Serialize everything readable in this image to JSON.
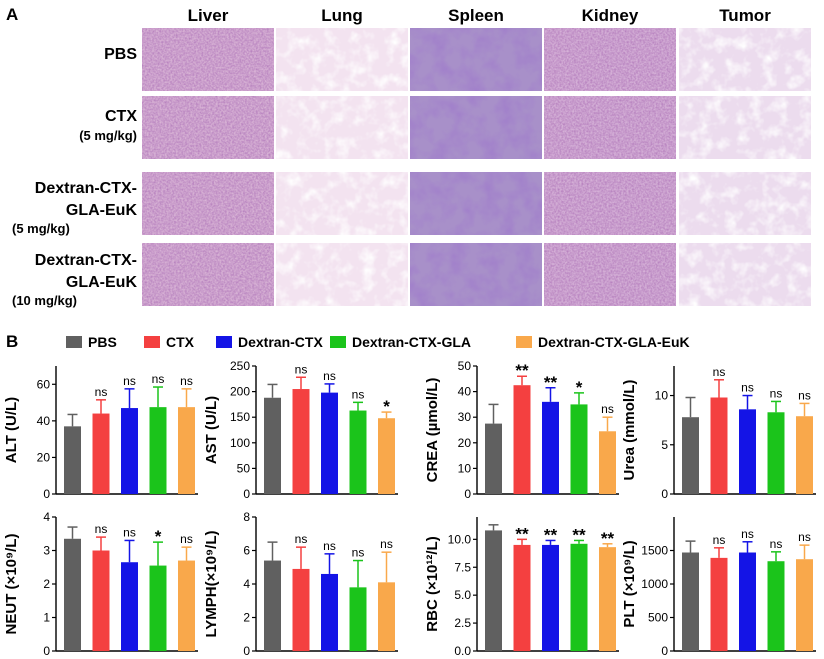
{
  "panel_a": {
    "letter": "A",
    "columns": [
      "Liver",
      "Lung",
      "Spleen",
      "Kidney",
      "Tumor"
    ],
    "rows": [
      {
        "lines": [
          "PBS"
        ],
        "sub": ""
      },
      {
        "lines": [
          "CTX"
        ],
        "sub": "(5 mg/kg)"
      },
      {
        "lines": [
          "Dextran-CTX-",
          "GLA-EuK"
        ],
        "sub": "(5 mg/kg)"
      },
      {
        "lines": [
          "Dextran-CTX-",
          "GLA-EuK"
        ],
        "sub": "(10 mg/kg)"
      }
    ]
  },
  "panel_b": {
    "letter": "B"
  },
  "colors": {
    "PBS": "#606060",
    "CTX": "#f44040",
    "Dextran-CTX": "#1414e6",
    "Dextran-CTX-GLA": "#1bc41b",
    "Dextran-CTX-GLA-EuK": "#f9a84b"
  },
  "chart_data": [
    {
      "type": "bar",
      "ylabel": "ALT (U/L)",
      "ylim": [
        0,
        70
      ],
      "yticks": [
        "0",
        "20",
        "40",
        "60"
      ],
      "categories": [
        "PBS",
        "CTX",
        "Dextran-CTX",
        "Dextran-CTX-GLA",
        "Dextran-CTX-GLA-EuK"
      ],
      "values": [
        37,
        44,
        47,
        47.5,
        47.5
      ],
      "errors": [
        6.5,
        7.5,
        10.5,
        11,
        10
      ],
      "significance": [
        "",
        "ns",
        "ns",
        "ns",
        "ns"
      ]
    },
    {
      "type": "bar",
      "ylabel": "AST (U/L)",
      "ylim": [
        0,
        250
      ],
      "yticks": [
        "0",
        "50",
        "100",
        "150",
        "200",
        "250"
      ],
      "categories": [
        "PBS",
        "CTX",
        "Dextran-CTX",
        "Dextran-CTX-GLA",
        "Dextran-CTX-GLA-EuK"
      ],
      "values": [
        188,
        205,
        198,
        163,
        148
      ],
      "errors": [
        26,
        23,
        17,
        16,
        12
      ],
      "significance": [
        "",
        "ns",
        "ns",
        "ns",
        "*"
      ]
    },
    {
      "type": "bar",
      "ylabel": "CREA (µmol/L)",
      "ylim": [
        0,
        50
      ],
      "yticks": [
        "0",
        "10",
        "20",
        "30",
        "40",
        "50"
      ],
      "categories": [
        "PBS",
        "CTX",
        "Dextran-CTX",
        "Dextran-CTX-GLA",
        "Dextran-CTX-GLA-EuK"
      ],
      "values": [
        27.5,
        42.5,
        36,
        35,
        24.5
      ],
      "errors": [
        7.5,
        3.5,
        5.5,
        4.5,
        5.5
      ],
      "significance": [
        "",
        "**",
        "**",
        "*",
        "ns"
      ]
    },
    {
      "type": "bar",
      "ylabel": "Urea (mmol/L)",
      "ylim": [
        0,
        13
      ],
      "yticks": [
        "0",
        "5",
        "10"
      ],
      "categories": [
        "PBS",
        "CTX",
        "Dextran-CTX",
        "Dextran-CTX-GLA",
        "Dextran-CTX-GLA-EuK"
      ],
      "values": [
        7.8,
        9.8,
        8.6,
        8.3,
        7.9
      ],
      "errors": [
        2.0,
        1.8,
        1.4,
        1.1,
        1.3
      ],
      "significance": [
        "",
        "ns",
        "ns",
        "ns",
        "ns"
      ]
    },
    {
      "type": "bar",
      "ylabel": "NEUT (×10⁹/L)",
      "ylim": [
        0,
        4
      ],
      "yticks": [
        "0",
        "1",
        "2",
        "3",
        "4"
      ],
      "categories": [
        "PBS",
        "CTX",
        "Dextran-CTX",
        "Dextran-CTX-GLA",
        "Dextran-CTX-GLA-EuK"
      ],
      "values": [
        3.35,
        3.0,
        2.65,
        2.55,
        2.7
      ],
      "errors": [
        0.35,
        0.4,
        0.65,
        0.7,
        0.4
      ],
      "significance": [
        "",
        "ns",
        "ns",
        "*",
        "ns"
      ]
    },
    {
      "type": "bar",
      "ylabel": "LYMPH(×10⁹/L)",
      "ylim": [
        0,
        8
      ],
      "yticks": [
        "0",
        "2",
        "4",
        "6",
        "8"
      ],
      "categories": [
        "PBS",
        "CTX",
        "Dextran-CTX",
        "Dextran-CTX-GLA",
        "Dextran-CTX-GLA-EuK"
      ],
      "values": [
        5.4,
        4.9,
        4.6,
        3.8,
        4.1
      ],
      "errors": [
        1.1,
        1.3,
        1.2,
        1.6,
        1.8
      ],
      "significance": [
        "",
        "ns",
        "ns",
        "ns",
        "ns"
      ]
    },
    {
      "type": "bar",
      "ylabel": "RBC (×10¹²/L)",
      "ylim": [
        0,
        12
      ],
      "yticks": [
        "0.0",
        "2.5",
        "5.0",
        "7.5",
        "10.0"
      ],
      "categories": [
        "PBS",
        "CTX",
        "Dextran-CTX",
        "Dextran-CTX-GLA",
        "Dextran-CTX-GLA-EuK"
      ],
      "values": [
        10.8,
        9.5,
        9.5,
        9.6,
        9.3
      ],
      "errors": [
        0.5,
        0.5,
        0.4,
        0.3,
        0.3
      ],
      "significance": [
        "",
        "**",
        "**",
        "**",
        "**"
      ]
    },
    {
      "type": "bar",
      "ylabel": "PLT (×10⁹/L)",
      "ylim": [
        0,
        2000
      ],
      "yticks": [
        "0",
        "500",
        "1000",
        "1500"
      ],
      "categories": [
        "PBS",
        "CTX",
        "Dextran-CTX",
        "Dextran-CTX-GLA",
        "Dextran-CTX-GLA-EuK"
      ],
      "values": [
        1470,
        1390,
        1470,
        1340,
        1370
      ],
      "errors": [
        170,
        150,
        160,
        140,
        210
      ],
      "significance": [
        "",
        "ns",
        "ns",
        "ns",
        "ns"
      ]
    }
  ]
}
